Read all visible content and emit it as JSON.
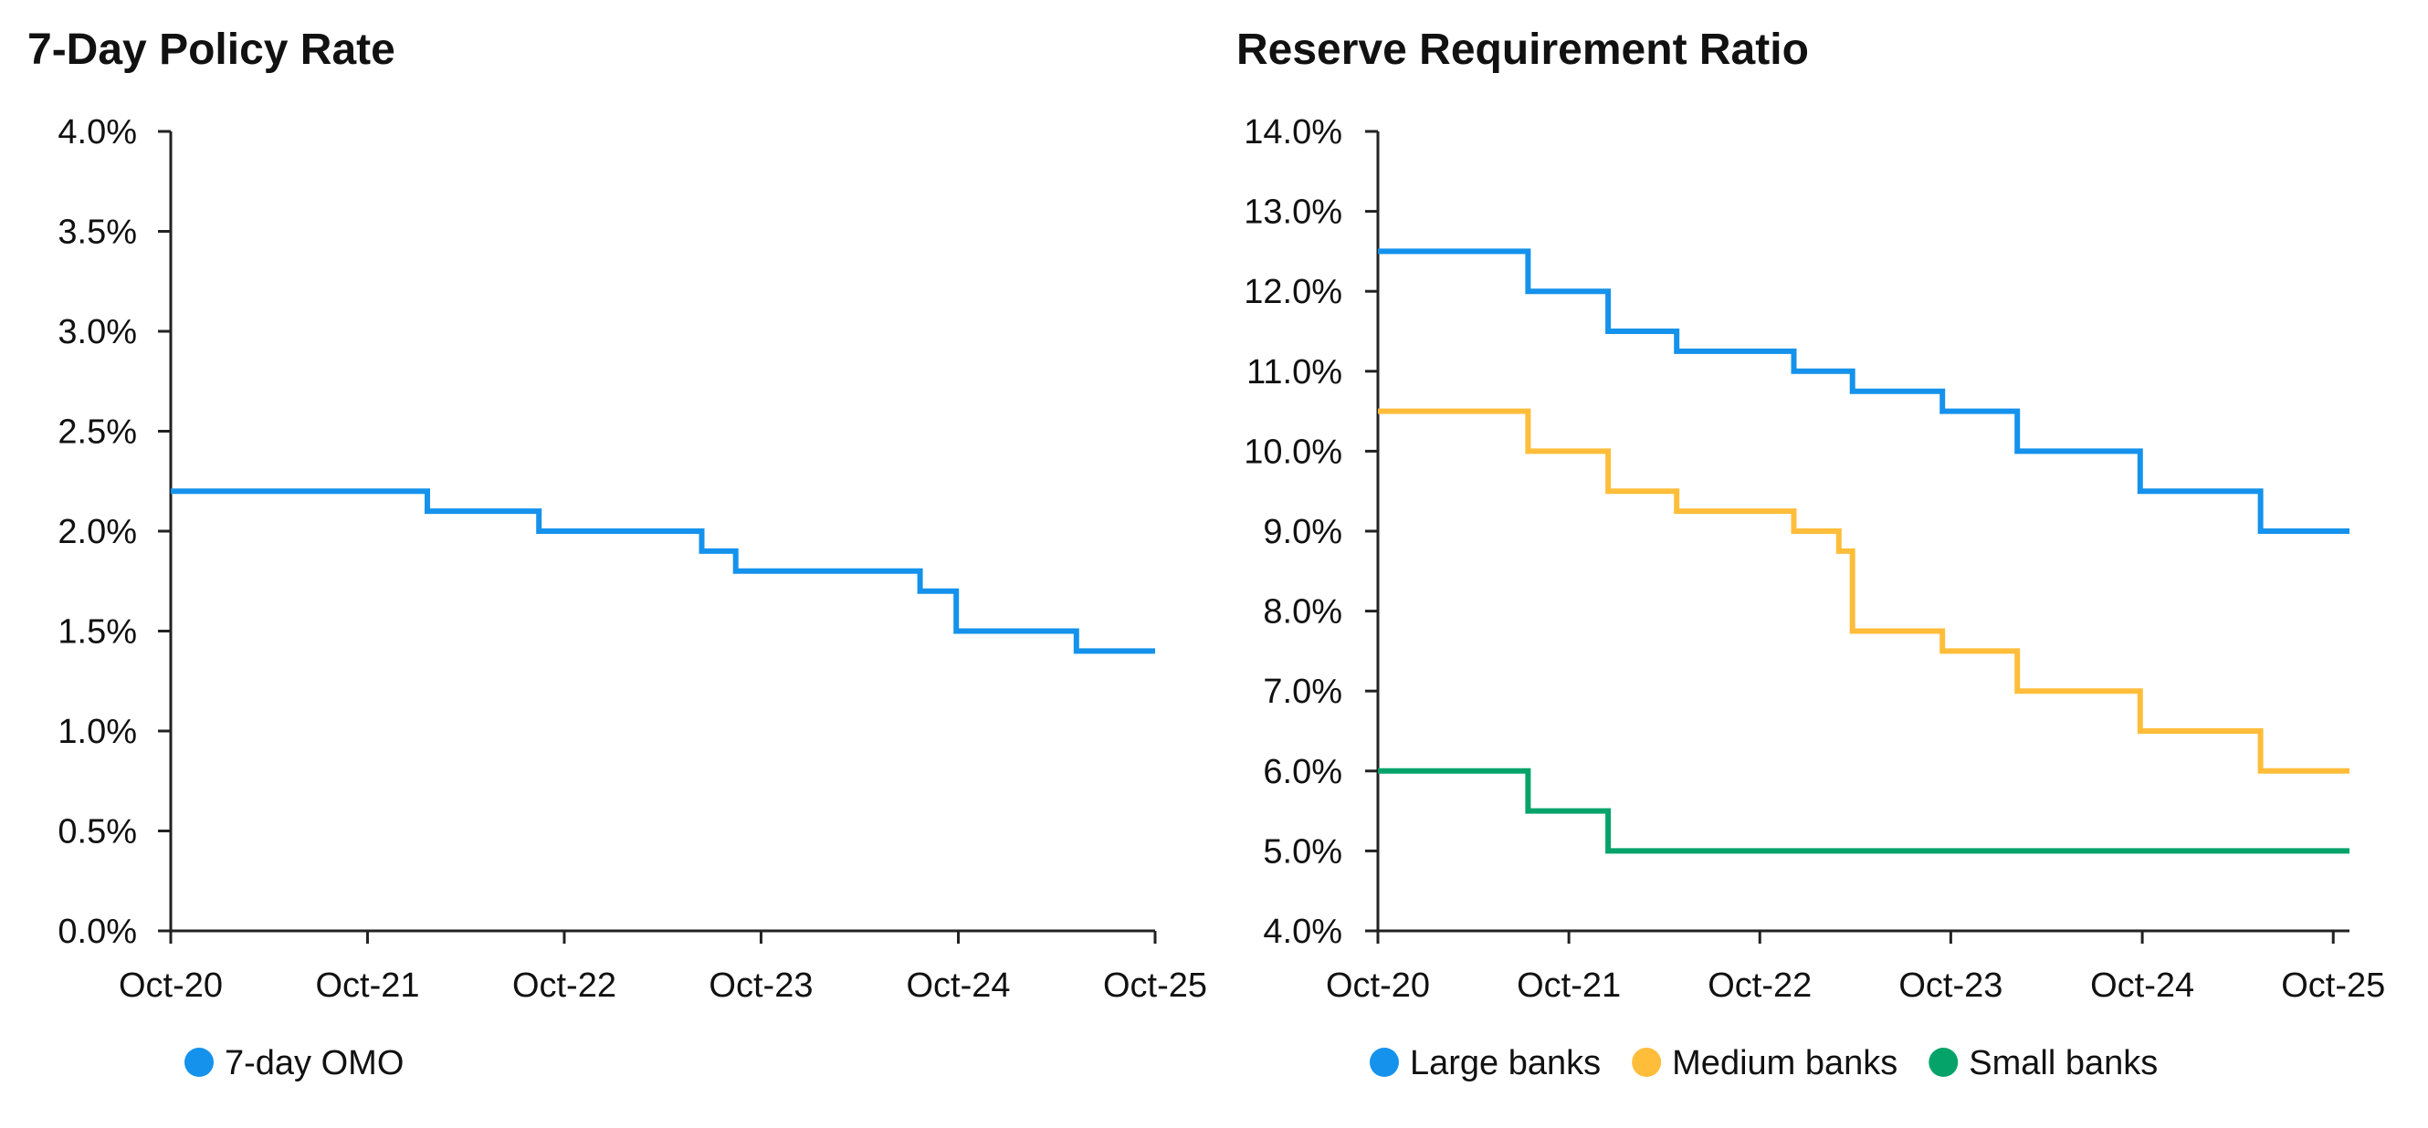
{
  "chart_data": [
    {
      "type": "line",
      "step": true,
      "title": "7-Day Policy Rate",
      "xlabel": "",
      "ylabel": "",
      "x_range": [
        "2020-10-01",
        "2025-10-01"
      ],
      "ylim": [
        0,
        4
      ],
      "x_ticks": [
        "2020-10-01",
        "2021-10-01",
        "2022-10-01",
        "2023-10-01",
        "2024-10-01",
        "2025-10-01"
      ],
      "x_tick_labels": [
        "Oct-20",
        "Oct-21",
        "Oct-22",
        "Oct-23",
        "Oct-24",
        "Oct-25"
      ],
      "y_ticks": [
        0,
        0.5,
        1,
        1.5,
        2,
        2.5,
        3,
        3.5,
        4
      ],
      "y_tick_labels": [
        "0.0%",
        "0.5%",
        "1.0%",
        "1.5%",
        "2.0%",
        "2.5%",
        "3.0%",
        "3.5%",
        "4.0%"
      ],
      "grid": false,
      "legend_position": "bottom-left",
      "series": [
        {
          "name": "7-day OMO",
          "color": "#1592EC",
          "points": [
            [
              "2020-10-01",
              2.2
            ],
            [
              "2022-01-20",
              2.1
            ],
            [
              "2022-08-15",
              2.0
            ],
            [
              "2023-06-13",
              1.9
            ],
            [
              "2023-08-15",
              1.8
            ],
            [
              "2024-07-22",
              1.7
            ],
            [
              "2024-09-27",
              1.5
            ],
            [
              "2025-05-08",
              1.4
            ],
            [
              "2025-10-01",
              1.4
            ]
          ]
        }
      ]
    },
    {
      "type": "line",
      "step": true,
      "title": "Reserve Requirement Ratio",
      "xlabel": "",
      "ylabel": "",
      "x_range": [
        "2020-10-01",
        "2025-11-01"
      ],
      "ylim": [
        4,
        14
      ],
      "x_ticks": [
        "2020-10-01",
        "2021-10-01",
        "2022-10-01",
        "2023-10-01",
        "2024-10-01",
        "2025-10-01"
      ],
      "x_tick_labels": [
        "Oct-20",
        "Oct-21",
        "Oct-22",
        "Oct-23",
        "Oct-24",
        "Oct-25"
      ],
      "y_ticks": [
        4,
        5,
        6,
        7,
        8,
        9,
        10,
        11,
        12,
        13,
        14
      ],
      "y_tick_labels": [
        "4.0%",
        "5.0%",
        "6.0%",
        "7.0%",
        "8.0%",
        "9.0%",
        "10.0%",
        "11.0%",
        "12.0%",
        "13.0%",
        "14.0%"
      ],
      "grid": false,
      "legend_position": "bottom",
      "series": [
        {
          "name": "Large banks",
          "color": "#1592EC",
          "points": [
            [
              "2020-10-01",
              12.5
            ],
            [
              "2021-07-15",
              12.0
            ],
            [
              "2021-12-15",
              11.5
            ],
            [
              "2022-04-25",
              11.25
            ],
            [
              "2022-12-05",
              11.0
            ],
            [
              "2023-03-27",
              10.75
            ],
            [
              "2023-09-15",
              10.5
            ],
            [
              "2024-02-05",
              10.0
            ],
            [
              "2024-09-27",
              9.5
            ],
            [
              "2025-05-15",
              9.0
            ],
            [
              "2025-11-01",
              9.0
            ]
          ]
        },
        {
          "name": "Medium banks",
          "color": "#FFBD3A",
          "points": [
            [
              "2020-10-01",
              10.5
            ],
            [
              "2021-07-15",
              10.0
            ],
            [
              "2021-12-15",
              9.5
            ],
            [
              "2022-04-25",
              9.25
            ],
            [
              "2022-12-05",
              9.0
            ],
            [
              "2023-03-01",
              8.75
            ],
            [
              "2023-03-27",
              7.75
            ],
            [
              "2023-09-15",
              7.5
            ],
            [
              "2024-02-05",
              7.0
            ],
            [
              "2024-09-27",
              6.5
            ],
            [
              "2025-05-15",
              6.0
            ],
            [
              "2025-11-01",
              6.0
            ]
          ]
        },
        {
          "name": "Small banks",
          "color": "#05A36A",
          "points": [
            [
              "2020-10-01",
              6.0
            ],
            [
              "2021-07-15",
              5.5
            ],
            [
              "2021-12-15",
              5.0
            ],
            [
              "2025-11-01",
              5.0
            ]
          ]
        }
      ]
    }
  ]
}
